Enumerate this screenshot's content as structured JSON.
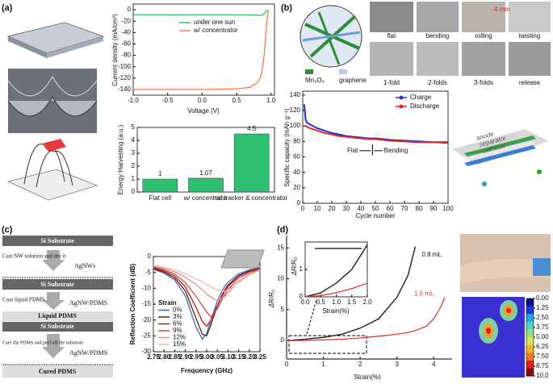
{
  "figure": {
    "panels": [
      "(a)",
      "(b)",
      "(c)",
      "(d)"
    ],
    "photo_labels": [
      "flat",
      "bending",
      "rolling",
      "twisting",
      "1-fold",
      "2-folds",
      "3-folds",
      "release"
    ],
    "scale": "4 mm",
    "materials": [
      "Mn₃O₄",
      "graphene"
    ],
    "cell_layers": [
      "anode",
      "separator",
      "cathode"
    ],
    "process": [
      "Si Substrate",
      "Cast NW solution and dry it",
      "AgNWs",
      "Si Substrate",
      "Coat liquid PDMS",
      "AgNW/PDMS",
      "Liquid PDMS",
      "Si Substrate",
      "Cure the PDMS and peel off the substrate",
      "AgNW/PDMS",
      "Cured PDMS"
    ]
  },
  "chart_data": [
    {
      "type": "line",
      "xlabel": "Voltage (V)",
      "ylabel": "Current density (mA/cm²)",
      "x": [
        -1,
        -0.5,
        0,
        0.5,
        0.7,
        0.8,
        0.85,
        0.88,
        0.9,
        0.92,
        0.94,
        0.96
      ],
      "series": [
        {
          "name": "under one sun",
          "color": "#3cb878",
          "values": [
            -9,
            -9,
            -9,
            -9,
            -9.2,
            -9.5,
            -9.8,
            -9,
            -7,
            -4,
            0,
            null
          ]
        },
        {
          "name": "w/ concentrator",
          "color": "#f47b50",
          "values": [
            -140,
            -140,
            -140,
            -139,
            -136,
            -128,
            -118,
            -100,
            -80,
            -50,
            -20,
            0
          ]
        }
      ],
      "xlim": [
        -1,
        1.05
      ],
      "xticks": [
        {
          "value": -1,
          "label": "-1.0"
        },
        -0.5,
        {
          "value": 0,
          "label": "0.0"
        },
        0.5,
        {
          "value": 1,
          "label": "1.0"
        }
      ],
      "ylim": [
        -150,
        10
      ],
      "yticks": [
        0,
        -20,
        -40,
        -60,
        -80,
        -100,
        -120,
        -140
      ]
    },
    {
      "type": "bar",
      "ylabel": "Energy Harvesting (a.u.)",
      "color": "#2fbf71",
      "categories": [
        "Flat cell",
        "w/ concentrator",
        "w/ tracker & concentrator"
      ],
      "values": [
        1,
        1.07,
        4.5
      ],
      "ylim": [
        0,
        5
      ],
      "yticks": [
        0,
        1,
        2,
        3,
        4,
        5
      ]
    },
    {
      "type": "line",
      "xlabel": "Cycle number",
      "ylabel": "Specific capacity (mAh g⁻¹)",
      "annotations": [
        "Flat",
        "Bending"
      ],
      "x": [
        1,
        2,
        3,
        5,
        10,
        15,
        20,
        25,
        30,
        35,
        40,
        45,
        50,
        55,
        60,
        70,
        80,
        90,
        100
      ],
      "series": [
        {
          "name": "Charge",
          "color": "#1f2fd6",
          "values": [
            128,
            108,
            104,
            102,
            97,
            94,
            91,
            89,
            87,
            86,
            85,
            84,
            84,
            83,
            82,
            81,
            80,
            79,
            79
          ]
        },
        {
          "name": "Discharge",
          "color": "#e0202a",
          "values": [
            100,
            100,
            99,
            97,
            94,
            91,
            89,
            87,
            86,
            85,
            84,
            83,
            83,
            82,
            81,
            80,
            79,
            79,
            78
          ]
        }
      ],
      "xlim": [
        0,
        100
      ],
      "xticks": [
        0,
        10,
        20,
        30,
        40,
        50,
        60,
        70,
        80,
        90,
        100
      ],
      "ylim": [
        0,
        145
      ],
      "yticks": [
        0,
        20,
        40,
        60,
        80,
        100,
        120,
        140
      ]
    },
    {
      "type": "line",
      "xlabel": "Frequency (GHz)",
      "ylabel": "Reflection Coefficient (dB)",
      "legend_title": "Strain",
      "x": [
        2.75,
        2.8,
        2.85,
        2.9,
        2.95,
        2.98,
        3.0,
        3.02,
        3.05,
        3.08,
        3.1,
        3.15,
        3.2,
        3.25
      ],
      "series": [
        {
          "name": "0%",
          "color": "#3a6fb0",
          "values": [
            -4,
            -5.2,
            -7.4,
            -12.4,
            -22.3,
            -26,
            -24.2,
            -20,
            -14,
            -9.9,
            -8.1,
            -5.5,
            -4.2,
            -3.5
          ]
        },
        {
          "name": "3%",
          "color": "#6e1a1a",
          "values": [
            -3.8,
            -4.9,
            -6.8,
            -10.8,
            -19.5,
            -24.5,
            -25,
            -21.5,
            -15.5,
            -11,
            -9,
            -6,
            -4.5,
            -3.7
          ]
        },
        {
          "name": "6%",
          "color": "#a82020",
          "values": [
            -3.5,
            -4.5,
            -6.2,
            -9.5,
            -16,
            -20.5,
            -22,
            -20,
            -15.5,
            -11.5,
            -9.5,
            -6.2,
            -4.7,
            -3.8
          ]
        },
        {
          "name": "9%",
          "color": "#d44848",
          "values": [
            -3.3,
            -4.2,
            -5.6,
            -8.2,
            -12.5,
            -15.5,
            -17.5,
            -19,
            -16.5,
            -12.5,
            -10.5,
            -6.8,
            -5,
            -4
          ]
        },
        {
          "name": "12%",
          "color": "#e88a8a",
          "values": [
            -3,
            -3.8,
            -4.8,
            -6.5,
            -8.8,
            -10.5,
            -11.8,
            -12.8,
            -14,
            -12.8,
            -11.5,
            -7.8,
            -5.5,
            -4.2
          ]
        },
        {
          "name": "15%",
          "color": "#f2b8b8",
          "values": [
            -2.8,
            -3.4,
            -4.2,
            -5.4,
            -7,
            -8,
            -8.8,
            -9.6,
            -10.5,
            -11,
            -10.6,
            -8.2,
            -5.8,
            -4.4
          ]
        }
      ],
      "xlim": [
        2.75,
        3.25
      ],
      "xticks": [
        2.75,
        {
          "value": 2.8,
          "label": "2.80"
        },
        2.85,
        {
          "value": 2.9,
          "label": "2.90"
        },
        2.95,
        {
          "value": 3,
          "label": "3.00"
        },
        3.05,
        {
          "value": 3.1,
          "label": "3.10"
        },
        3.15,
        {
          "value": 3.2,
          "label": "3.20"
        },
        3.25
      ],
      "ylim": [
        -30,
        0
      ],
      "yticks": [
        -30,
        -25,
        -20,
        -15,
        -10,
        -5,
        0
      ]
    },
    {
      "type": "line",
      "xlabel": "Strain(%)",
      "ylabel": "ΔR/R₀",
      "x": [
        0,
        0.5,
        1,
        1.5,
        2,
        2.5,
        3,
        3.3,
        3.5,
        3.8,
        4,
        4.2,
        4.3
      ],
      "series": [
        {
          "name": "0.8 mL",
          "color": "#111111",
          "values": [
            0,
            0.2,
            0.5,
            1,
            2,
            3.5,
            7,
            10.5,
            15.2,
            null,
            null,
            null,
            null
          ]
        },
        {
          "name": "1.0 mL",
          "color": "#e03a3a",
          "values": [
            0,
            0,
            0.1,
            0.2,
            0.4,
            0.7,
            1,
            1.3,
            1.6,
            2.3,
            3.5,
            5.5,
            7
          ]
        }
      ],
      "xlim": [
        0,
        4.5
      ],
      "xticks": [
        0,
        1,
        2,
        3,
        4
      ],
      "ylim": [
        -3,
        17
      ],
      "yticks": [
        0,
        5,
        10,
        15
      ]
    },
    {
      "type": "line",
      "xlabel": "Strain(%)",
      "ylabel": "ΔR/R₀",
      "x": [
        0,
        0.5,
        1,
        1.5,
        2
      ],
      "series": [
        {
          "color": "#111111",
          "values": [
            0,
            0.15,
            0.5,
            1,
            1.9
          ]
        },
        {
          "color": "#e03a3a",
          "values": [
            0,
            0.05,
            0.15,
            0.3,
            0.5
          ]
        }
      ],
      "xlim": [
        0,
        2
      ],
      "xticks": [
        {
          "value": 0,
          "label": "0.0"
        },
        0.5,
        {
          "value": 1,
          "label": "1.0"
        },
        1.5,
        {
          "value": 2,
          "label": "2.0"
        }
      ],
      "ylim": [
        0,
        2
      ],
      "yticks": [
        0,
        1
      ]
    },
    {
      "type": "colorbar",
      "ylim": [
        0,
        10
      ],
      "yticks": [
        {
          "value": 0,
          "label": "0.00"
        },
        1.25,
        {
          "value": 2.5,
          "label": "2.50"
        },
        3.75,
        {
          "value": 5,
          "label": "5.00"
        },
        6.25,
        {
          "value": 7.5,
          "label": "7.50"
        },
        8.75,
        {
          "value": 10,
          "label": "10.0"
        }
      ]
    }
  ]
}
